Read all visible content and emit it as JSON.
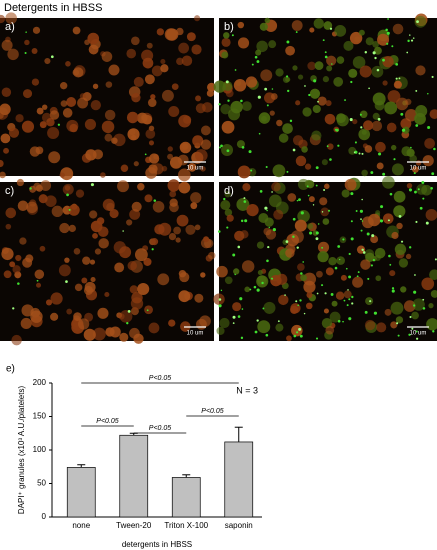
{
  "header": {
    "title": "Detergents in HBSS"
  },
  "panels": [
    {
      "label": "a)",
      "scale": "10 um"
    },
    {
      "label": "b)",
      "scale": "10 um"
    },
    {
      "label": "c)",
      "scale": "10 um"
    },
    {
      "label": "d)",
      "scale": "10 um"
    }
  ],
  "chart_data": {
    "type": "bar",
    "panel_label": "e)",
    "categories": [
      "none",
      "Tween-20",
      "Triton X-100",
      "saponin"
    ],
    "values": [
      74,
      122,
      59,
      112
    ],
    "errors": [
      4,
      3,
      4,
      22
    ],
    "color": "#c0c0c0",
    "ylim": [
      0,
      200
    ],
    "yticks": [
      0,
      50,
      100,
      150,
      200
    ],
    "ylabel": "DAPI⁺ granules (x10³ A.U./platelets)",
    "xlabel": "detergents in HBSS",
    "annotation": "N = 3",
    "brackets": [
      {
        "between": [
          "none",
          "Tween-20"
        ],
        "label": "P<0.05"
      },
      {
        "between": [
          "Tween-20",
          "Triton X-100"
        ],
        "label": "P<0.05"
      },
      {
        "between": [
          "Triton X-100",
          "saponin"
        ],
        "label": "P<0.05"
      },
      {
        "between": [
          "none",
          "saponin"
        ],
        "label": "P<0.05"
      }
    ]
  }
}
